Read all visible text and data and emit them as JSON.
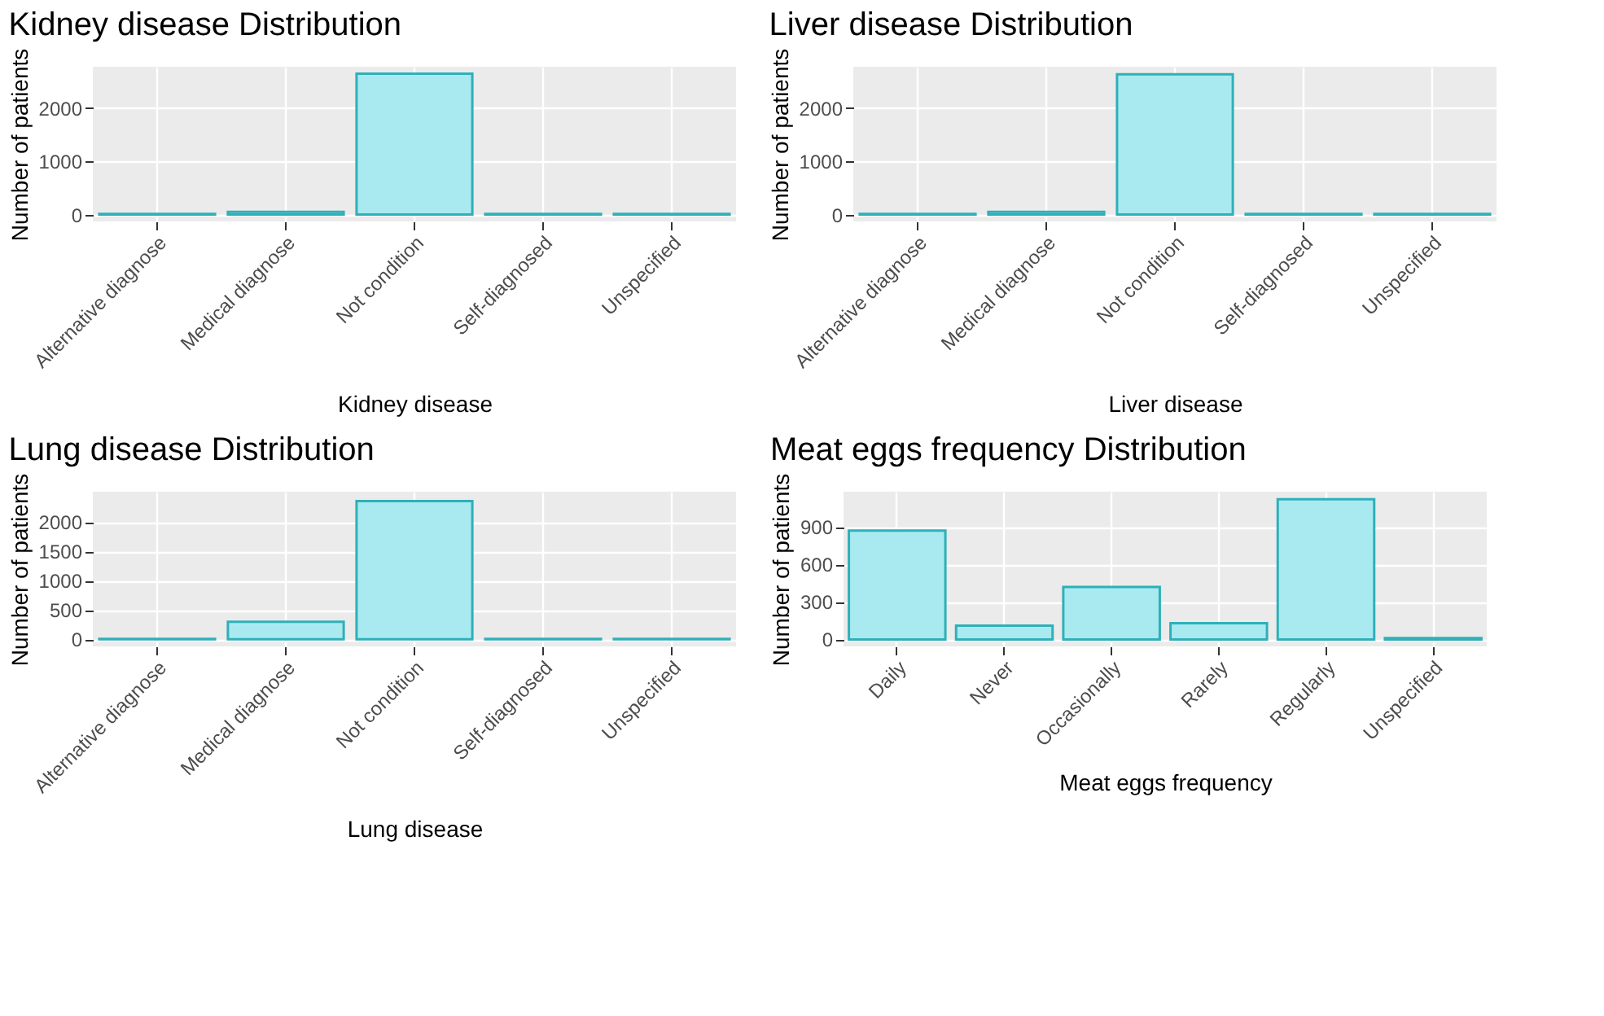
{
  "chart_data": [
    {
      "type": "bar",
      "title": "Kidney disease Distribution",
      "xlabel": "Kidney disease",
      "ylabel": "Number of patients",
      "categories": [
        "Alternative diagnose",
        "Medical diagnose",
        "Not condition",
        "Self-diagnosed",
        "Unspecified"
      ],
      "values": [
        10,
        50,
        2650,
        10,
        10
      ],
      "color": "#a9eaf0",
      "ylim": [
        -130,
        2780
      ],
      "yticks": [
        0,
        1000,
        2000
      ],
      "grid": true
    },
    {
      "type": "bar",
      "title": "Liver disease Distribution",
      "xlabel": "Liver disease",
      "ylabel": "Number of patients",
      "categories": [
        "Alternative diagnose",
        "Medical diagnose",
        "Not condition",
        "Self-diagnosed",
        "Unspecified"
      ],
      "values": [
        10,
        50,
        2640,
        10,
        10
      ],
      "color": "#a9eaf0",
      "ylim": [
        -130,
        2780
      ],
      "yticks": [
        0,
        1000,
        2000
      ],
      "grid": true
    },
    {
      "type": "bar",
      "title": "Lung disease Distribution",
      "xlabel": "Lung disease",
      "ylabel": "Number of patients",
      "categories": [
        "Alternative diagnose",
        "Medical diagnose",
        "Not condition",
        "Self-diagnosed",
        "Unspecified"
      ],
      "values": [
        10,
        300,
        2360,
        10,
        10
      ],
      "color": "#a9eaf0",
      "ylim": [
        -120,
        2520
      ],
      "yticks": [
        0,
        500,
        1000,
        1500,
        2000
      ],
      "grid": true
    },
    {
      "type": "bar",
      "title": "Meat eggs frequency Distribution",
      "xlabel": "Meat eggs frequency",
      "ylabel": "Number of patients",
      "categories": [
        "Daily",
        "Never",
        "Occasionally",
        "Rarely",
        "Regularly",
        "Unspecified"
      ],
      "values": [
        870,
        110,
        420,
        130,
        1120,
        10
      ],
      "color": "#a9eaf0",
      "ylim": [
        -56,
        1181
      ],
      "yticks": [
        0,
        300,
        600,
        900
      ],
      "grid": true
    }
  ]
}
